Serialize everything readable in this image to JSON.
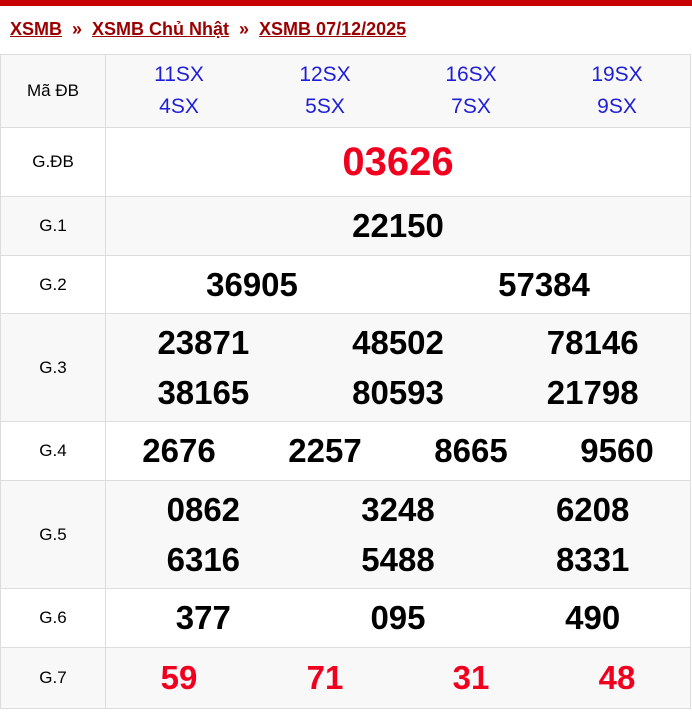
{
  "breadcrumb": [
    {
      "label": "XSMB"
    },
    {
      "label": "XSMB Chủ Nhật"
    },
    {
      "label": "XSMB 07/12/2025"
    }
  ],
  "breadcrumb_sep": "»",
  "colors": {
    "top_bar": "#c80000",
    "breadcrumb": "#9b0000",
    "code": "#1e1ed6",
    "highlight": "#f0001e"
  },
  "ma_db": {
    "label": "Mã ĐB",
    "codes": [
      "11SX",
      "12SX",
      "16SX",
      "19SX",
      "4SX",
      "5SX",
      "7SX",
      "9SX"
    ]
  },
  "prizes": [
    {
      "label": "G.ĐB",
      "numbers": [
        "03626"
      ]
    },
    {
      "label": "G.1",
      "numbers": [
        "22150"
      ]
    },
    {
      "label": "G.2",
      "numbers": [
        "36905",
        "57384"
      ]
    },
    {
      "label": "G.3",
      "numbers": [
        "23871",
        "48502",
        "78146",
        "38165",
        "80593",
        "21798"
      ]
    },
    {
      "label": "G.4",
      "numbers": [
        "2676",
        "2257",
        "8665",
        "9560"
      ]
    },
    {
      "label": "G.5",
      "numbers": [
        "0862",
        "3248",
        "6208",
        "6316",
        "5488",
        "8331"
      ]
    },
    {
      "label": "G.6",
      "numbers": [
        "377",
        "095",
        "490"
      ]
    },
    {
      "label": "G.7",
      "numbers": [
        "59",
        "71",
        "31",
        "48"
      ]
    }
  ]
}
